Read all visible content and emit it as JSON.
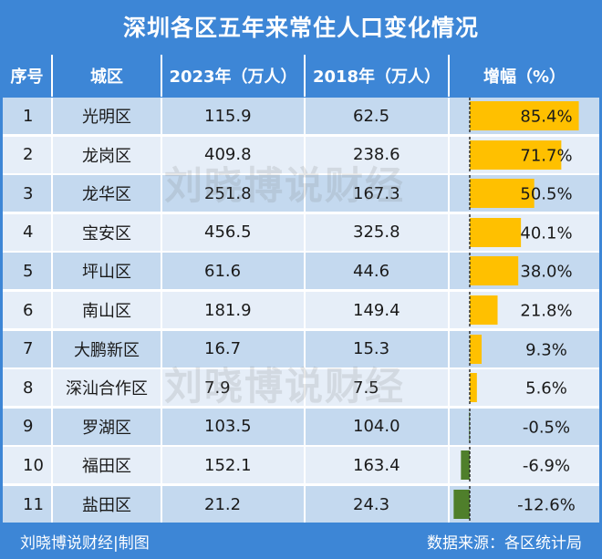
{
  "title": "深圳各区五年来常住人口变化情况",
  "headers": [
    "序号",
    "城区",
    "2023年（万人）",
    "2018年（万人）",
    "增幅（%）"
  ],
  "watermark": "刘晓博说财经",
  "footer": {
    "left": "刘晓博说财经|制图",
    "right": "数据来源：各区统计局"
  },
  "colors": {
    "header_bg": "#3d86d6",
    "positive_bar": "#ffc000",
    "negative_bar": "#4f7f2b"
  },
  "chart_data": {
    "type": "table",
    "categories": [
      "光明区",
      "龙岗区",
      "龙华区",
      "宝安区",
      "坪山区",
      "南山区",
      "大鹏新区",
      "深汕合作区",
      "罗湖区",
      "福田区",
      "盐田区"
    ],
    "index": [
      "1",
      "2",
      "3",
      "4",
      "5",
      "6",
      "7",
      "8",
      "9",
      "10",
      "11"
    ],
    "pop_2023": [
      "115.9",
      "409.8",
      "251.8",
      "456.5",
      "61.6",
      "181.9",
      "16.7",
      "7.9",
      "103.5",
      "152.1",
      "21.2"
    ],
    "pop_2018": [
      "62.5",
      "238.6",
      "167.3",
      "325.8",
      "44.6",
      "149.4",
      "15.3",
      "7.5",
      "104.0",
      "163.4",
      "24.3"
    ],
    "growth_pct": [
      85.4,
      71.7,
      50.5,
      40.1,
      38.0,
      21.8,
      9.3,
      5.6,
      -0.5,
      -6.9,
      -12.6
    ],
    "growth_labels": [
      "85.4%",
      "71.7%",
      "50.5%",
      "40.1%",
      "38.0%",
      "21.8%",
      "9.3%",
      "5.6%",
      "-0.5%",
      "-6.9%",
      "-12.6%"
    ]
  }
}
